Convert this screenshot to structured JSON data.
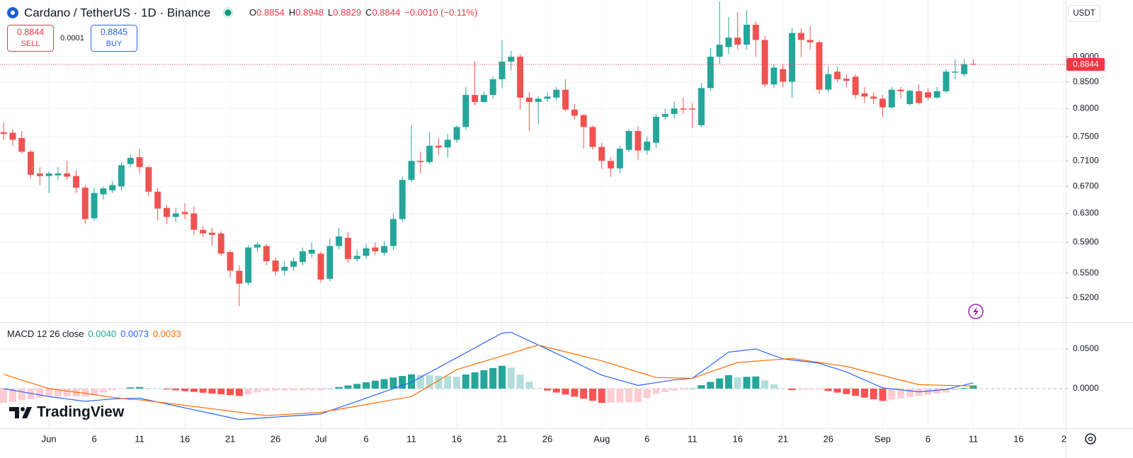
{
  "header": {
    "symbol": "Cardano / TetherUS · 1D · Binance",
    "ohlc": [
      {
        "key": "O",
        "value": "0.8854"
      },
      {
        "key": "H",
        "value": "0.8948"
      },
      {
        "key": "L",
        "value": "0.8829"
      },
      {
        "key": "C",
        "value": "0.8844"
      }
    ],
    "change": "−0.0010 (−0.11%)"
  },
  "trade": {
    "sell": {
      "price": "0.8844",
      "label": "SELL"
    },
    "spread": "0.0001",
    "buy": {
      "price": "0.8845",
      "label": "BUY"
    }
  },
  "currency": "USDT",
  "brand": "TradingView",
  "chart_data": [
    {
      "type": "candlestick",
      "up_color": "#26a69a",
      "down_color": "#ef5350",
      "log": true,
      "grid": true,
      "open": [
        0.758,
        0.757,
        0.748,
        0.725,
        0.69,
        0.686,
        0.687,
        0.69,
        0.686,
        0.668,
        0.623,
        0.658,
        0.664,
        0.67,
        0.705,
        0.716,
        0.7,
        0.662,
        0.638,
        0.625,
        0.632,
        0.63,
        0.607,
        0.603,
        0.602,
        0.577,
        0.553,
        0.538,
        0.583,
        0.585,
        0.566,
        0.553,
        0.558,
        0.564,
        0.575,
        0.575,
        0.543,
        0.585,
        0.596,
        0.568,
        0.572,
        0.583,
        0.576,
        0.585,
        0.622,
        0.68,
        0.71,
        0.708,
        0.735,
        0.732,
        0.745,
        0.767,
        0.825,
        0.812,
        0.825,
        0.855,
        0.89,
        0.9,
        0.82,
        0.812,
        0.818,
        0.82,
        0.835,
        0.798,
        0.788,
        0.767,
        0.733,
        0.71,
        0.698,
        0.728,
        0.76,
        0.727,
        0.74,
        0.785,
        0.79,
        0.8,
        0.8,
        0.77,
        0.838,
        0.9,
        0.92,
        0.94,
        0.925,
        0.968,
        0.935,
        0.845,
        0.875,
        0.85,
        0.95,
        0.935,
        0.93,
        0.835,
        0.87,
        0.856,
        0.86,
        0.828,
        0.822,
        0.818,
        0.802,
        0.835,
        0.808,
        0.832,
        0.83,
        0.82,
        0.832,
        0.868,
        0.865,
        0.8854
      ],
      "high": [
        0.775,
        0.763,
        0.76,
        0.728,
        0.7,
        0.693,
        0.7,
        0.71,
        0.695,
        0.672,
        0.668,
        0.67,
        0.678,
        0.708,
        0.72,
        0.73,
        0.703,
        0.668,
        0.642,
        0.638,
        0.645,
        0.64,
        0.612,
        0.61,
        0.605,
        0.58,
        0.56,
        0.586,
        0.59,
        0.588,
        0.57,
        0.565,
        0.57,
        0.583,
        0.59,
        0.578,
        0.595,
        0.61,
        0.604,
        0.58,
        0.588,
        0.59,
        0.592,
        0.63,
        0.685,
        0.77,
        0.725,
        0.758,
        0.748,
        0.755,
        0.77,
        0.84,
        0.89,
        0.832,
        0.86,
        0.935,
        0.912,
        0.905,
        0.83,
        0.823,
        0.83,
        0.84,
        0.855,
        0.808,
        0.79,
        0.77,
        0.74,
        0.715,
        0.735,
        0.763,
        0.768,
        0.75,
        0.79,
        0.8,
        0.813,
        0.82,
        0.81,
        0.848,
        0.918,
        1.02,
        0.985,
        0.995,
        1.0,
        0.975,
        0.945,
        0.885,
        0.885,
        0.96,
        0.96,
        0.965,
        0.935,
        0.88,
        0.88,
        0.865,
        0.865,
        0.84,
        0.83,
        0.825,
        0.84,
        0.84,
        0.835,
        0.845,
        0.838,
        0.84,
        0.875,
        0.895,
        0.895,
        0.8948
      ],
      "low": [
        0.745,
        0.735,
        0.722,
        0.683,
        0.672,
        0.66,
        0.68,
        0.68,
        0.66,
        0.615,
        0.62,
        0.65,
        0.66,
        0.663,
        0.7,
        0.69,
        0.655,
        0.62,
        0.615,
        0.618,
        0.622,
        0.6,
        0.597,
        0.585,
        0.572,
        0.545,
        0.51,
        0.535,
        0.577,
        0.56,
        0.547,
        0.547,
        0.553,
        0.56,
        0.57,
        0.538,
        0.54,
        0.58,
        0.563,
        0.565,
        0.568,
        0.573,
        0.572,
        0.58,
        0.618,
        0.676,
        0.69,
        0.705,
        0.72,
        0.715,
        0.74,
        0.762,
        0.805,
        0.81,
        0.818,
        0.838,
        0.872,
        0.798,
        0.76,
        0.772,
        0.812,
        0.815,
        0.795,
        0.78,
        0.73,
        0.728,
        0.697,
        0.685,
        0.69,
        0.725,
        0.712,
        0.72,
        0.732,
        0.78,
        0.782,
        0.79,
        0.765,
        0.767,
        0.832,
        0.885,
        0.905,
        0.915,
        0.915,
        0.9,
        0.84,
        0.838,
        0.84,
        0.82,
        0.9,
        0.915,
        0.827,
        0.83,
        0.85,
        0.84,
        0.818,
        0.81,
        0.808,
        0.785,
        0.8,
        0.818,
        0.805,
        0.807,
        0.815,
        0.818,
        0.828,
        0.855,
        0.86,
        0.8829
      ],
      "close": [
        0.755,
        0.745,
        0.725,
        0.688,
        0.686,
        0.69,
        0.69,
        0.685,
        0.668,
        0.622,
        0.66,
        0.667,
        0.672,
        0.703,
        0.715,
        0.7,
        0.662,
        0.637,
        0.625,
        0.63,
        0.629,
        0.607,
        0.602,
        0.6,
        0.575,
        0.553,
        0.537,
        0.583,
        0.587,
        0.565,
        0.552,
        0.558,
        0.565,
        0.578,
        0.58,
        0.542,
        0.585,
        0.598,
        0.568,
        0.572,
        0.582,
        0.578,
        0.585,
        0.622,
        0.68,
        0.71,
        0.708,
        0.735,
        0.732,
        0.745,
        0.767,
        0.825,
        0.812,
        0.825,
        0.855,
        0.89,
        0.9,
        0.82,
        0.812,
        0.818,
        0.822,
        0.835,
        0.798,
        0.787,
        0.767,
        0.733,
        0.71,
        0.698,
        0.73,
        0.76,
        0.727,
        0.742,
        0.785,
        0.79,
        0.8,
        0.798,
        0.798,
        0.838,
        0.9,
        0.925,
        0.94,
        0.925,
        0.968,
        0.935,
        0.845,
        0.878,
        0.85,
        0.95,
        0.935,
        0.93,
        0.835,
        0.865,
        0.855,
        0.852,
        0.825,
        0.822,
        0.818,
        0.802,
        0.835,
        0.832,
        0.833,
        0.81,
        0.82,
        0.832,
        0.87,
        0.87,
        0.885,
        0.8844
      ],
      "xlim": [
        -0.4,
        117.2
      ],
      "xticks": [
        {
          "value": 5,
          "label": "Jun"
        },
        {
          "value": 10,
          "label": "6"
        },
        {
          "value": 15,
          "label": "11"
        },
        {
          "value": 20,
          "label": "16"
        },
        {
          "value": 25,
          "label": "21"
        },
        {
          "value": 30,
          "label": "26"
        },
        {
          "value": 35,
          "label": "Jul"
        },
        {
          "value": 40,
          "label": "6"
        },
        {
          "value": 45,
          "label": "11"
        },
        {
          "value": 50,
          "label": "16"
        },
        {
          "value": 55,
          "label": "21"
        },
        {
          "value": 60,
          "label": "26"
        },
        {
          "value": 66,
          "label": "Aug"
        },
        {
          "value": 71,
          "label": "6"
        },
        {
          "value": 76,
          "label": "11"
        },
        {
          "value": 81,
          "label": "16"
        },
        {
          "value": 86,
          "label": "21"
        },
        {
          "value": 91,
          "label": "26"
        },
        {
          "value": 97,
          "label": "Sep"
        },
        {
          "value": 102,
          "label": "6"
        },
        {
          "value": 107,
          "label": "11"
        },
        {
          "value": 112,
          "label": "16"
        },
        {
          "value": 117,
          "label": "2"
        }
      ],
      "ylim": [
        0.492,
        1.024
      ],
      "yticks": [
        {
          "value": 0.52,
          "label": "0.5200"
        },
        {
          "value": 0.55,
          "label": "0.5500"
        },
        {
          "value": 0.59,
          "label": "0.5900"
        },
        {
          "value": 0.63,
          "label": "0.6300"
        },
        {
          "value": 0.67,
          "label": "0.6700"
        },
        {
          "value": 0.71,
          "label": "0.7100"
        },
        {
          "value": 0.75,
          "label": "0.7500"
        },
        {
          "value": 0.8,
          "label": "0.8000"
        },
        {
          "value": 0.85,
          "label": "0.8500"
        },
        {
          "value": 0.9,
          "label": "0.9000"
        }
      ],
      "last_price": {
        "value": 0.8844,
        "label": "0.8844",
        "color": "#f23645"
      }
    },
    {
      "type": "macd",
      "title": "MACD 12 26 close",
      "ylim": [
        -0.05,
        0.083
      ],
      "yticks": [
        {
          "value": 0,
          "label": "0.0000"
        },
        {
          "value": 0.05,
          "label": "0.0500"
        }
      ],
      "series": [
        {
          "kind": "histogram",
          "color": "#26a69a",
          "colors": [
            "#26a69a",
            "#b2dfdb",
            "#ffcdd2",
            "#ff5252"
          ],
          "value_label": "0.0040",
          "values": [
            -0.018,
            -0.0164,
            -0.0148,
            -0.0132,
            -0.0116,
            -0.01,
            -0.01,
            -0.01,
            -0.01,
            -0.01,
            -0.0073,
            -0.0047,
            -0.002,
            -0.0004,
            0.0014,
            0.002,
            0.0009,
            0,
            -0.0011,
            -0.0021,
            -0.0032,
            -0.0041,
            -0.0052,
            -0.0062,
            -0.0072,
            -0.0082,
            -0.0093,
            -0.0071,
            -0.0048,
            -0.0027,
            -0.0026,
            -0.0024,
            -0.0023,
            -0.0023,
            -0.0021,
            -0.002,
            0,
            0.002,
            0.004,
            0.006,
            0.008,
            0.01,
            0.012,
            0.014,
            0.016,
            0.018,
            0.0174,
            0.0168,
            0.0162,
            0.0156,
            0.015,
            0.0178,
            0.0205,
            0.0233,
            0.026,
            0.0288,
            0.0264,
            0.0176,
            0.0087,
            0,
            -0.0024,
            -0.005,
            -0.0074,
            -0.0101,
            -0.0127,
            -0.0154,
            -0.018,
            -0.0177,
            -0.0175,
            -0.0172,
            -0.017,
            -0.0117,
            -0.0065,
            -0.0045,
            -0.0025,
            -0.0013,
            0,
            0.0043,
            0.0085,
            0.0128,
            0.017,
            0.0143,
            0.0149,
            0.0153,
            0.0103,
            0.0054,
            0.0003,
            -0.0019,
            -0.0015,
            -0.0013,
            -0.001,
            -0.003,
            -0.005,
            -0.007,
            -0.0091,
            -0.0113,
            -0.0134,
            -0.0155,
            -0.0139,
            -0.0122,
            -0.0107,
            -0.009,
            -0.0077,
            -0.0064,
            -0.0051,
            -0.0021,
            0.0009,
            0.004
          ]
        },
        {
          "kind": "line",
          "color": "#2962ff",
          "value_label": "0.0073",
          "values": [
            0,
            -0.002,
            -0.004,
            -0.006,
            -0.008,
            -0.01,
            -0.0115,
            -0.013,
            -0.0145,
            -0.016,
            -0.015,
            -0.014,
            -0.013,
            -0.0127,
            -0.0123,
            -0.012,
            -0.0145,
            -0.0169,
            -0.0194,
            -0.0218,
            -0.0243,
            -0.0267,
            -0.0292,
            -0.0316,
            -0.0341,
            -0.0365,
            -0.039,
            -0.0382,
            -0.0374,
            -0.0367,
            -0.0359,
            -0.0351,
            -0.0343,
            -0.0336,
            -0.0328,
            -0.032,
            -0.028,
            -0.024,
            -0.02,
            -0.016,
            -0.012,
            -0.008,
            -0.004,
            0,
            0.004,
            0.008,
            0.0142,
            0.0204,
            0.0266,
            0.0328,
            0.039,
            0.0452,
            0.0514,
            0.0576,
            0.0638,
            0.07,
            0.071,
            0.0657,
            0.0603,
            0.055,
            0.0497,
            0.0443,
            0.039,
            0.0335,
            0.028,
            0.0225,
            0.017,
            0.0138,
            0.0105,
            0.0073,
            0.004,
            0.0058,
            0.0075,
            0.0093,
            0.011,
            0.012,
            0.013,
            0.0213,
            0.0295,
            0.0378,
            0.046,
            0.0473,
            0.0487,
            0.05,
            0.0458,
            0.0417,
            0.0375,
            0.0361,
            0.0348,
            0.0334,
            0.032,
            0.0283,
            0.0247,
            0.021,
            0.016,
            0.011,
            0.006,
            0.001,
            -0.0003,
            -0.0015,
            -0.0028,
            -0.004,
            -0.003,
            -0.002,
            -0.001,
            0.0018,
            0.0045,
            0.0073
          ]
        },
        {
          "kind": "line",
          "color": "#ff6d00",
          "value_label": "0.0033",
          "values": [
            0.018,
            0.0144,
            0.0108,
            0.0072,
            0.0036,
            0,
            -0.0015,
            -0.003,
            -0.0045,
            -0.006,
            -0.0077,
            -0.0093,
            -0.011,
            -0.0123,
            -0.0137,
            -0.014,
            -0.0154,
            -0.0169,
            -0.0183,
            -0.0197,
            -0.0211,
            -0.0226,
            -0.024,
            -0.0254,
            -0.0269,
            -0.0283,
            -0.0297,
            -0.0311,
            -0.0326,
            -0.034,
            -0.0333,
            -0.0327,
            -0.032,
            -0.0313,
            -0.0307,
            -0.03,
            -0.028,
            -0.026,
            -0.024,
            -0.022,
            -0.02,
            -0.018,
            -0.016,
            -0.014,
            -0.012,
            -0.01,
            -0.0032,
            0.0036,
            0.0104,
            0.0172,
            0.024,
            0.0274,
            0.0309,
            0.0343,
            0.0378,
            0.0412,
            0.0446,
            0.0481,
            0.0516,
            0.055,
            0.0521,
            0.0493,
            0.0464,
            0.0436,
            0.0407,
            0.0379,
            0.035,
            0.0315,
            0.028,
            0.0245,
            0.021,
            0.0175,
            0.014,
            0.0138,
            0.0135,
            0.0133,
            0.013,
            0.017,
            0.021,
            0.025,
            0.029,
            0.033,
            0.0338,
            0.0347,
            0.0355,
            0.0363,
            0.0372,
            0.038,
            0.0363,
            0.0347,
            0.033,
            0.0313,
            0.0297,
            0.028,
            0.0251,
            0.0223,
            0.0194,
            0.0165,
            0.0136,
            0.0107,
            0.0079,
            0.005,
            0.0047,
            0.0044,
            0.0041,
            0.0039,
            0.0036,
            0.0033
          ]
        }
      ]
    }
  ]
}
